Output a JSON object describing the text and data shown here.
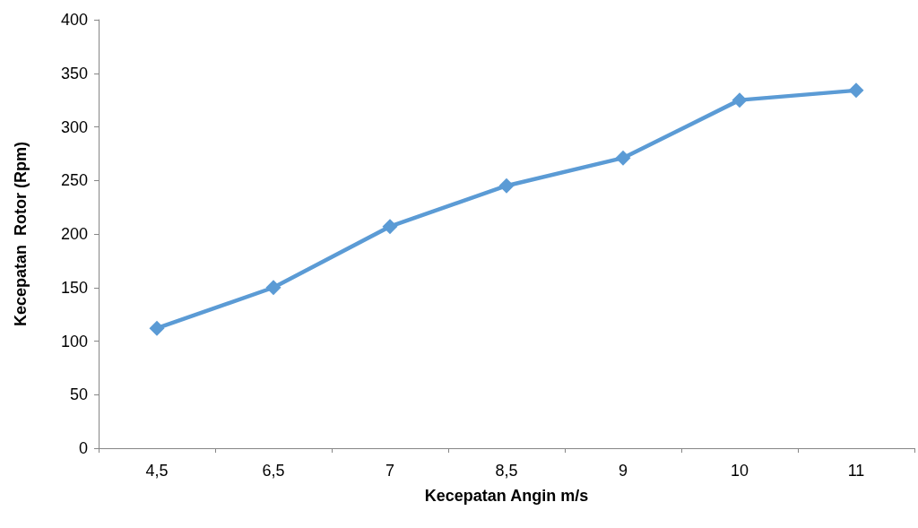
{
  "chart_data": {
    "type": "line",
    "xlabel": "Kecepatan Angin m/s",
    "ylabel": "Kecepatan  Rotor (Rpm)",
    "categories": [
      "4,5",
      "6,5",
      "7",
      "8,5",
      "9",
      "10",
      "11"
    ],
    "series": [
      {
        "color": "#5b9bd5",
        "values": [
          112,
          150,
          207,
          245,
          271,
          325,
          334
        ]
      }
    ],
    "ylim": [
      0,
      400
    ],
    "yticks": [
      0,
      50,
      100,
      150,
      200,
      250,
      300,
      350,
      400
    ],
    "grid": false,
    "marker": "diamond",
    "line_style": "solid"
  }
}
